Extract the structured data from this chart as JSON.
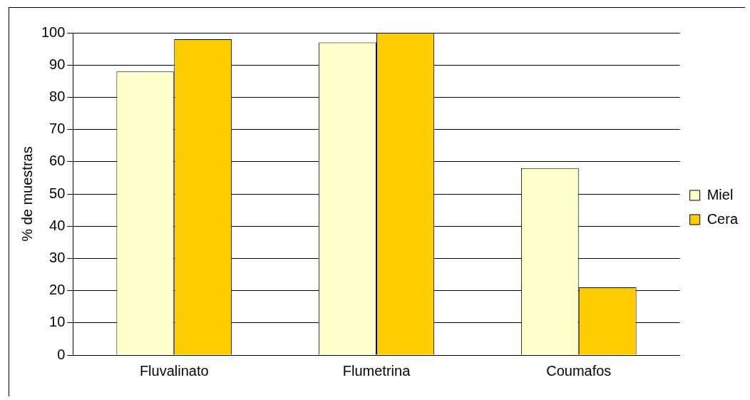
{
  "chart_data": {
    "type": "bar",
    "ylabel": "% de muestras",
    "categories": [
      "Fluvalinato",
      "Flumetrina",
      "Coumafos"
    ],
    "series": [
      {
        "name": "Miel",
        "color": "#ffffcc",
        "values": [
          88,
          97,
          58
        ]
      },
      {
        "name": "Cera",
        "color": "#ffcc00",
        "values": [
          98,
          100,
          21
        ]
      }
    ],
    "ylim": [
      0,
      100
    ],
    "yticks": [
      0,
      10,
      20,
      30,
      40,
      50,
      60,
      70,
      80,
      90,
      100
    ],
    "grid": "y",
    "legend": "right"
  }
}
